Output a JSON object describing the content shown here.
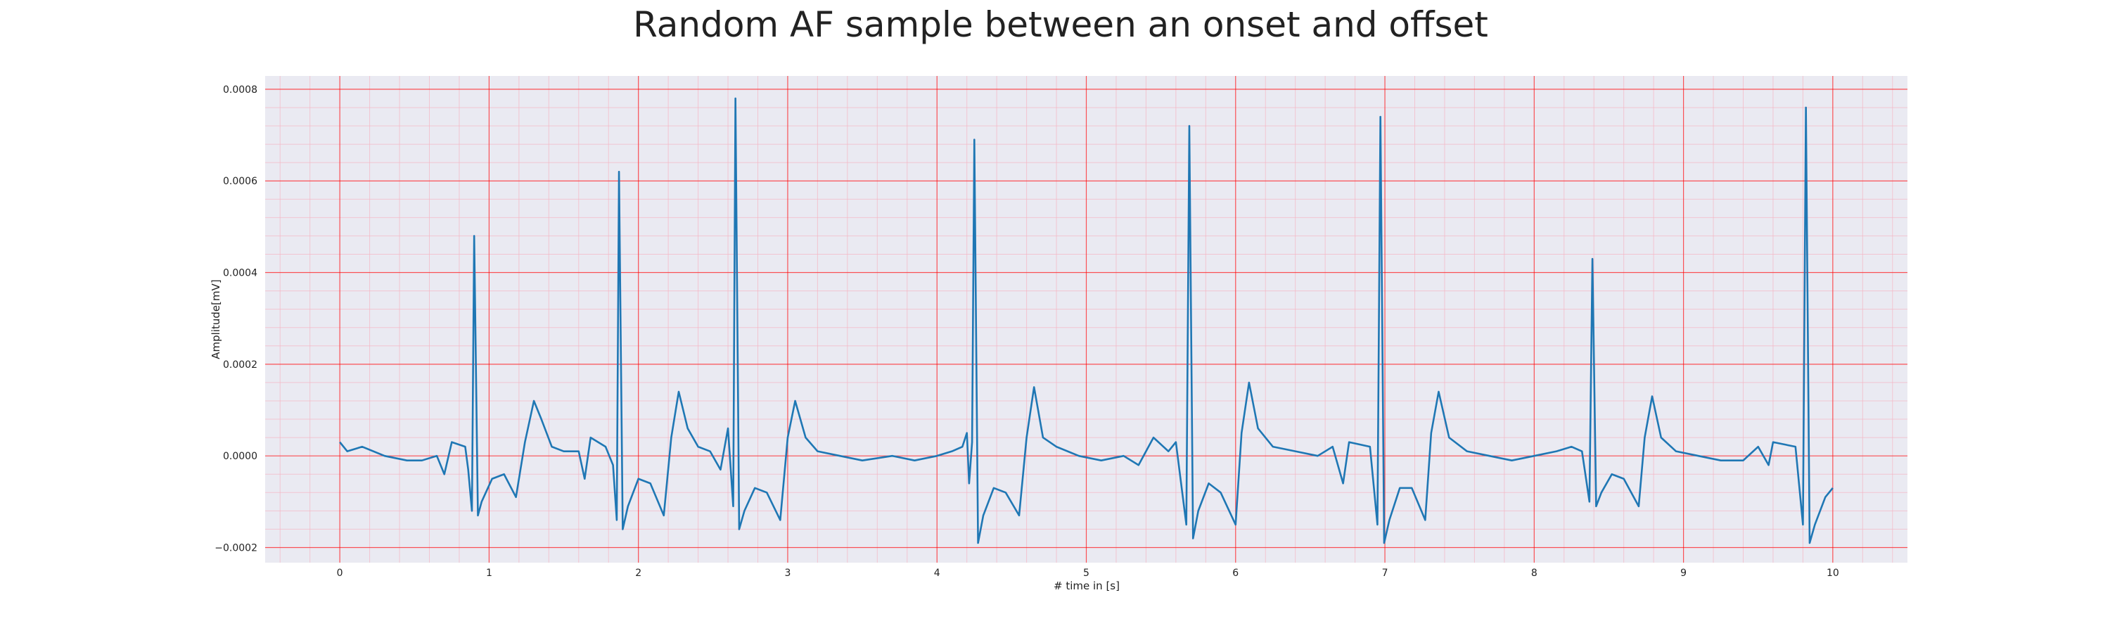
{
  "chart_data": {
    "type": "line",
    "title": "Random AF sample between an onset and offset",
    "xlabel": "# time in [s]",
    "ylabel": "Amplitude[mV]",
    "color": "#1f77b4",
    "grid": true,
    "grid_color": "#ff0000",
    "minor_grid": true,
    "minor_grid_color": "#f5b5c3",
    "background": "#eaeaf2",
    "xlim": [
      -0.5,
      10.5
    ],
    "ylim": [
      -0.000233,
      0.000829
    ],
    "xticks": [
      0,
      1,
      2,
      3,
      4,
      5,
      6,
      7,
      8,
      9,
      10
    ],
    "yticks": [
      {
        "value": -0.0002,
        "label": "−0.0002"
      },
      {
        "value": 0,
        "label": "0.0000"
      },
      0.0002,
      0.0004,
      0.0006,
      0.0008
    ],
    "x": [
      0,
      0.05,
      0.15,
      0.3,
      0.45,
      0.55,
      0.65,
      0.7,
      0.75,
      0.84,
      0.86,
      0.885,
      0.9,
      0.925,
      0.95,
      1.02,
      1.1,
      1.18,
      1.24,
      1.3,
      1.35,
      1.42,
      1.5,
      1.6,
      1.64,
      1.68,
      1.78,
      1.83,
      1.855,
      1.87,
      1.895,
      1.93,
      2.0,
      2.08,
      2.17,
      2.22,
      2.27,
      2.33,
      2.4,
      2.48,
      2.55,
      2.6,
      2.635,
      2.65,
      2.675,
      2.71,
      2.78,
      2.86,
      2.95,
      3.0,
      3.05,
      3.12,
      3.2,
      3.35,
      3.5,
      3.7,
      3.85,
      4.0,
      4.1,
      4.17,
      4.2,
      4.215,
      4.235,
      4.25,
      4.275,
      4.31,
      4.38,
      4.46,
      4.55,
      4.6,
      4.65,
      4.71,
      4.8,
      4.95,
      5.1,
      5.25,
      5.35,
      5.45,
      5.55,
      5.6,
      5.67,
      5.69,
      5.715,
      5.75,
      5.82,
      5.9,
      6.0,
      6.04,
      6.09,
      6.15,
      6.25,
      6.4,
      6.55,
      6.65,
      6.72,
      6.76,
      6.9,
      6.95,
      6.97,
      6.995,
      7.03,
      7.1,
      7.18,
      7.27,
      7.31,
      7.36,
      7.43,
      7.55,
      7.7,
      7.85,
      8.0,
      8.15,
      8.25,
      8.32,
      8.37,
      8.39,
      8.415,
      8.45,
      8.52,
      8.6,
      8.7,
      8.74,
      8.79,
      8.85,
      8.95,
      9.1,
      9.25,
      9.4,
      9.5,
      9.57,
      9.6,
      9.75,
      9.8,
      9.82,
      9.845,
      9.88,
      9.95,
      10.0
    ],
    "values": [
      3e-05,
      1e-05,
      2e-05,
      0.0,
      -1e-05,
      -1e-05,
      0.0,
      -4e-05,
      3e-05,
      2e-05,
      -3e-05,
      -0.00012,
      0.00048,
      -0.00013,
      -0.0001,
      -5e-05,
      -4e-05,
      -9e-05,
      3e-05,
      0.00012,
      8e-05,
      2e-05,
      1e-05,
      1e-05,
      -5e-05,
      4e-05,
      2e-05,
      -2e-05,
      -0.00014,
      0.00062,
      -0.00016,
      -0.00011,
      -5e-05,
      -6e-05,
      -0.00013,
      4e-05,
      0.00014,
      6e-05,
      2e-05,
      1e-05,
      -3e-05,
      6e-05,
      -0.00011,
      0.00078,
      -0.00016,
      -0.00012,
      -7e-05,
      -8e-05,
      -0.00014,
      4e-05,
      0.00012,
      4e-05,
      1e-05,
      0.0,
      -1e-05,
      0.0,
      -1e-05,
      0.0,
      1e-05,
      2e-05,
      5e-05,
      -6e-05,
      3e-05,
      0.00069,
      -0.00019,
      -0.00013,
      -7e-05,
      -8e-05,
      -0.00013,
      4e-05,
      0.00015,
      4e-05,
      2e-05,
      0.0,
      -1e-05,
      0.0,
      -2e-05,
      4e-05,
      1e-05,
      3e-05,
      -0.00015,
      0.00072,
      -0.00018,
      -0.00012,
      -6e-05,
      -8e-05,
      -0.00015,
      5e-05,
      0.00016,
      6e-05,
      2e-05,
      1e-05,
      0.0,
      2e-05,
      -6e-05,
      3e-05,
      2e-05,
      -0.00015,
      0.00074,
      -0.00019,
      -0.00014,
      -7e-05,
      -7e-05,
      -0.00014,
      5e-05,
      0.00014,
      4e-05,
      1e-05,
      0.0,
      -1e-05,
      0.0,
      1e-05,
      2e-05,
      1e-05,
      -0.0001,
      0.00043,
      -0.00011,
      -8e-05,
      -4e-05,
      -5e-05,
      -0.00011,
      4e-05,
      0.00013,
      4e-05,
      1e-05,
      0.0,
      -1e-05,
      -1e-05,
      2e-05,
      -2e-05,
      3e-05,
      2e-05,
      -0.00015,
      0.00076,
      -0.00019,
      -0.00015,
      -9e-05,
      -7e-05
    ]
  }
}
